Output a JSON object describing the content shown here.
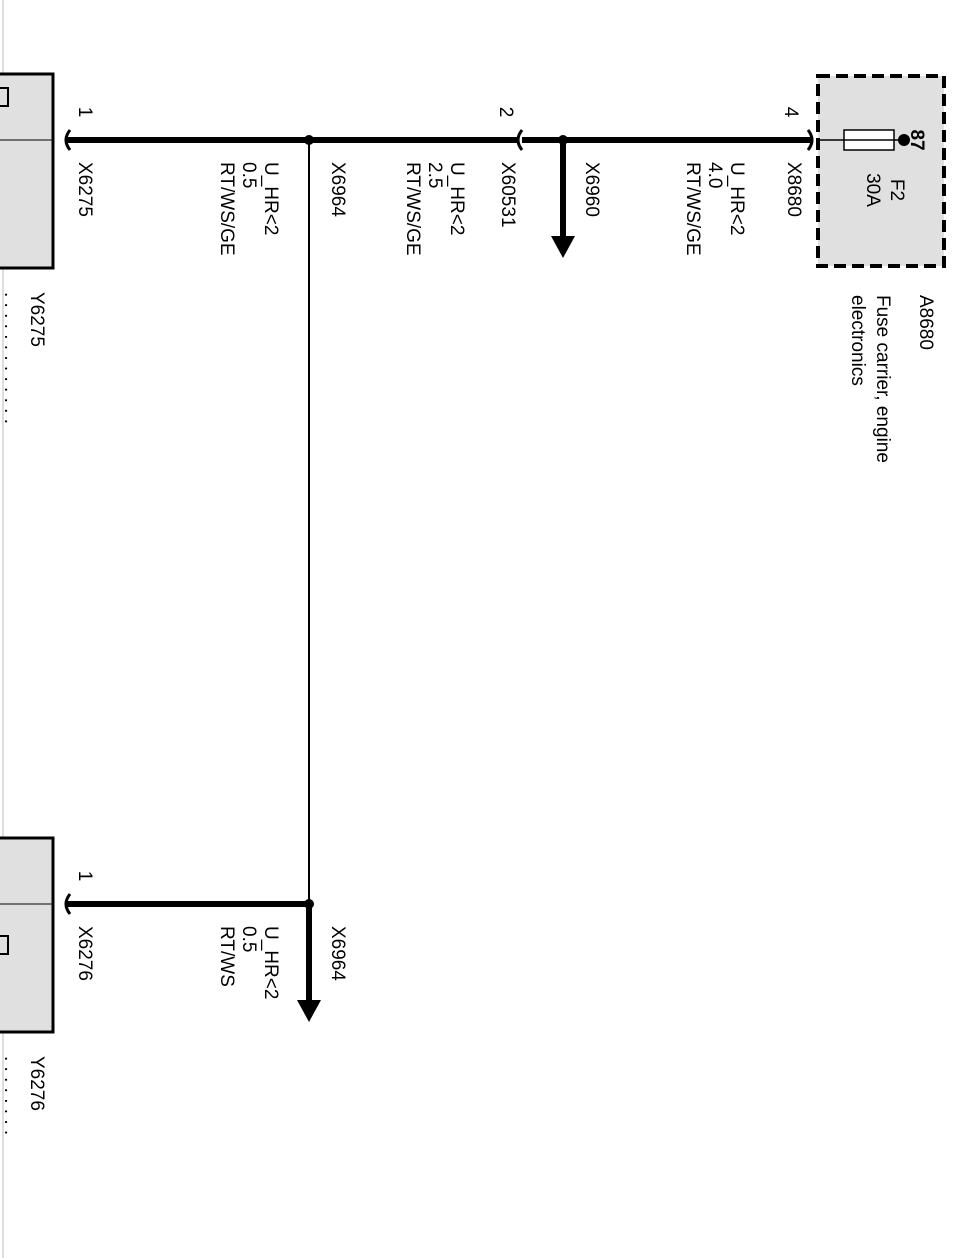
{
  "fuse_carrier": {
    "id": "A8680",
    "name_line1": "Fuse carrier, engine",
    "name_line2": "electronics",
    "fuse_id": "F2",
    "fuse_rating": "30A",
    "fuse_pin": "87"
  },
  "connectors": {
    "x8680": {
      "id": "X8680",
      "pin": "4"
    },
    "x60531": {
      "id": "X60531",
      "pin": "2"
    },
    "x6960": {
      "id": "X6960"
    },
    "x6964_top": {
      "id": "X6964"
    },
    "x6964_bottom": {
      "id": "X6964"
    },
    "x6275": {
      "id": "X6275",
      "pin": "1"
    },
    "x6276": {
      "id": "X6276",
      "pin": "1"
    }
  },
  "wires": {
    "w1": {
      "signal": "U_HR<2",
      "size": "4.0",
      "color": "RT/WS/GE"
    },
    "w2": {
      "signal": "U_HR<2",
      "size": "2.5",
      "color": "RT/WS/GE"
    },
    "w3": {
      "signal": "U_HR<2",
      "size": "0.5",
      "color": "RT/WS/GE"
    },
    "w4": {
      "signal": "U_HR<2",
      "size": "0.5",
      "color": "RT/WS"
    }
  },
  "components": {
    "y6275": {
      "id": "Y6275"
    },
    "y6276": {
      "id": "Y6276"
    }
  },
  "colors": {
    "component_fill": "#e0e0e0",
    "line": "#000000",
    "background": "#ffffff"
  }
}
